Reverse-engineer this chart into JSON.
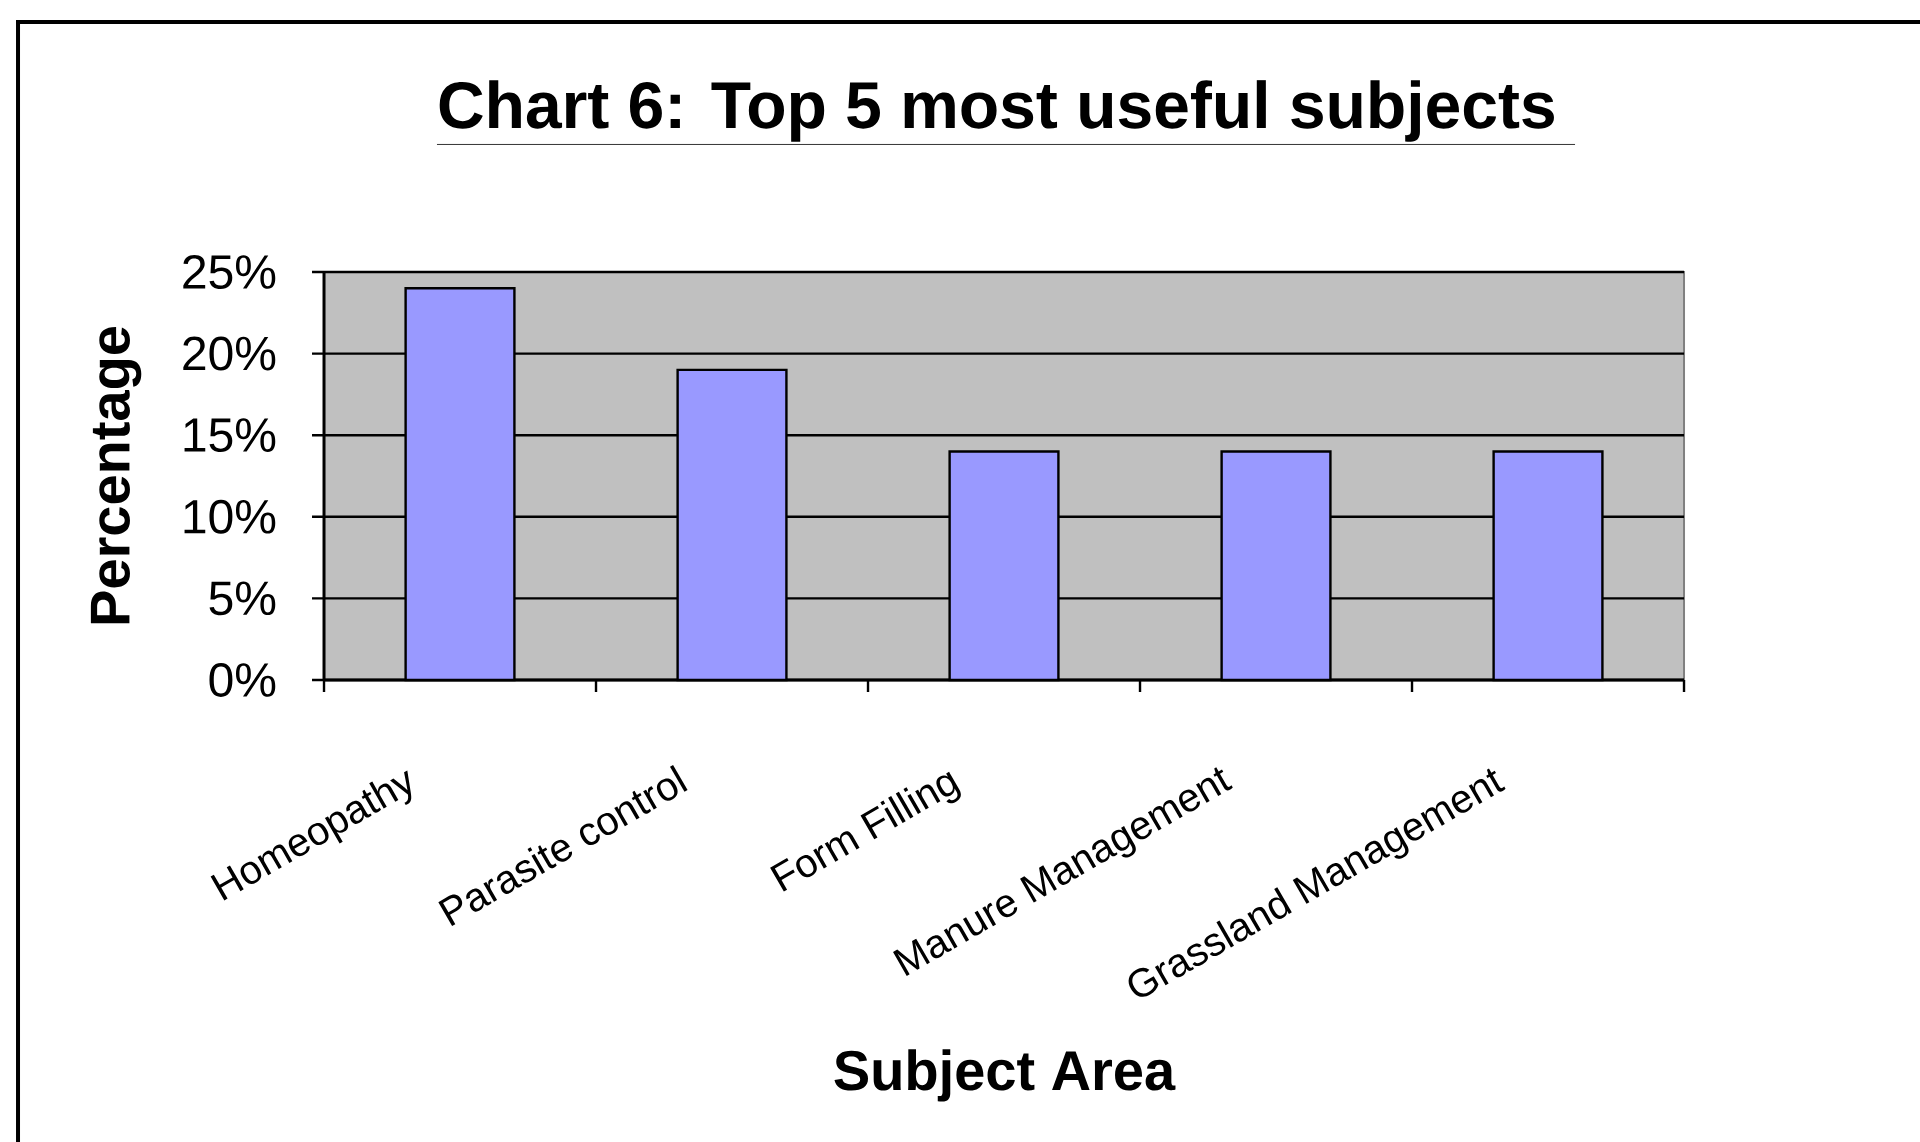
{
  "chart_data": {
    "type": "bar",
    "title": "Chart 6: Top 5 most useful subjects",
    "xlabel": "Subject Area",
    "ylabel": "Percentage",
    "categories": [
      "Homeopathy",
      "Parasite control",
      "Form Filling",
      "Manure Management",
      "Grassland Management"
    ],
    "values": [
      24,
      19,
      14,
      14,
      14
    ],
    "color": "#9999ff",
    "ylim": [
      0,
      25
    ],
    "yticks": [
      {
        "value": 0,
        "label": "0%"
      },
      {
        "value": 5,
        "label": "5%"
      },
      {
        "value": 10,
        "label": "10%"
      },
      {
        "value": 15,
        "label": "15%"
      },
      {
        "value": 20,
        "label": "20%"
      },
      {
        "value": 25,
        "label": "25%"
      }
    ],
    "grid": "y"
  }
}
